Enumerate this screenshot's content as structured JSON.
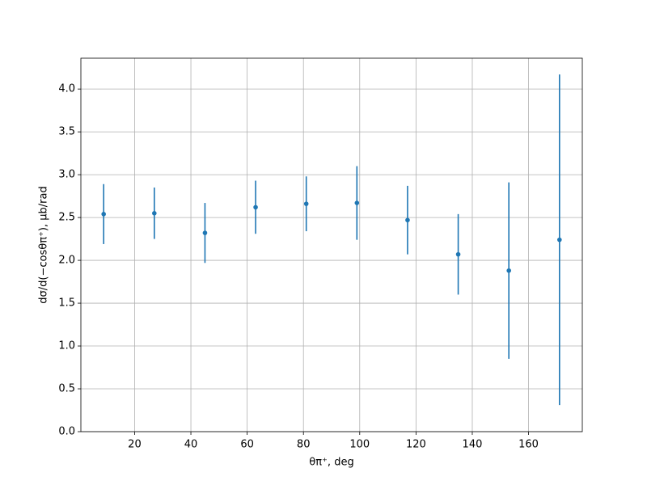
{
  "chart_data": {
    "type": "errorbar",
    "x_label": "θπ⁺, deg",
    "y_label": "dσ/d(−cosθπ⁺), μb/rad",
    "x": [
      9,
      27,
      45,
      63,
      81,
      99,
      117,
      135,
      153,
      171
    ],
    "values": [
      2.54,
      2.55,
      2.32,
      2.62,
      2.66,
      2.67,
      2.47,
      2.07,
      1.88,
      2.24
    ],
    "errors": [
      0.35,
      0.3,
      0.35,
      0.31,
      0.32,
      0.43,
      0.4,
      0.47,
      1.03,
      1.93
    ],
    "color": "#1f77b4",
    "xlim": [
      0.9,
      179.1
    ],
    "ylim": [
      0,
      4.36
    ],
    "xticks": [
      20,
      40,
      60,
      80,
      100,
      120,
      140,
      160
    ],
    "yticks": [
      {
        "value": 0,
        "label": "0.0"
      },
      {
        "value": 0.5,
        "label": "0.5"
      },
      {
        "value": 1,
        "label": "1.0"
      },
      {
        "value": 1.5,
        "label": "1.5"
      },
      {
        "value": 2,
        "label": "2.0"
      },
      {
        "value": 2.5,
        "label": "2.5"
      },
      {
        "value": 3,
        "label": "3.0"
      },
      {
        "value": 3.5,
        "label": "3.5"
      },
      {
        "value": 4,
        "label": "4.0"
      }
    ],
    "grid": true
  }
}
